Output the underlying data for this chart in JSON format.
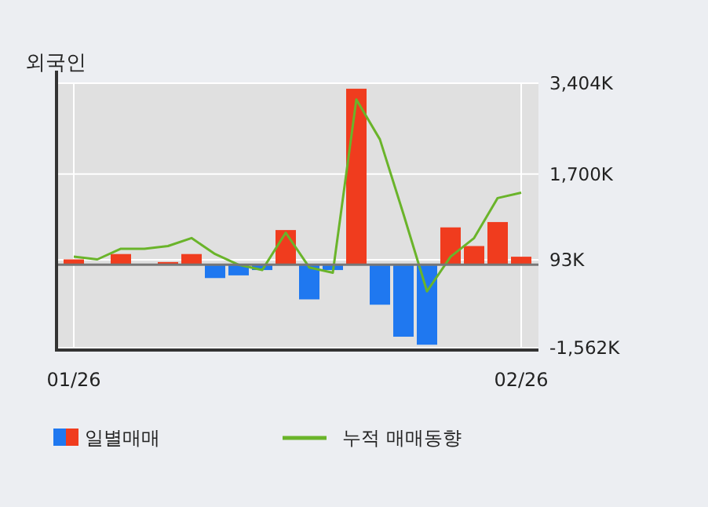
{
  "chart_data": {
    "type": "bar",
    "title": "외국인",
    "categories": [
      "01/26",
      null,
      null,
      null,
      null,
      null,
      null,
      null,
      null,
      null,
      null,
      null,
      null,
      null,
      null,
      null,
      null,
      null,
      null,
      "02/26"
    ],
    "series": [
      {
        "name": "일별매매",
        "colors": [
          "#f03c1e",
          "#f03c1e",
          "#f03c1e",
          "#f03c1e",
          "#f03c1e",
          "#f03c1e",
          "#1f78f0",
          "#1f78f0",
          "#1f78f0",
          "#f03c1e",
          "#1f78f0",
          "#1f78f0",
          "#f03c1e",
          "#1f78f0",
          "#1f78f0",
          "#1f78f0",
          "#f03c1e",
          "#f03c1e",
          "#f03c1e",
          "#f03c1e"
        ],
        "values": [
          100,
          null,
          200,
          null,
          50,
          200,
          -250,
          -200,
          -100,
          650,
          -650,
          -100,
          3300,
          -750,
          -1350,
          -1500,
          700,
          350,
          800,
          150
        ]
      },
      {
        "name": "누적 매매동향",
        "type": "line",
        "color": "#6ab42a",
        "values": [
          150,
          100,
          300,
          300,
          350,
          500,
          200,
          0,
          -100,
          600,
          -50,
          -150,
          3100,
          2350,
          950,
          -500,
          150,
          500,
          1250,
          1350
        ]
      }
    ],
    "ylim": [
      -1600,
      3404
    ],
    "yticks": [
      {
        "value": 3404,
        "label": "3,404K"
      },
      {
        "value": 1700,
        "label": "1,700K"
      },
      {
        "value": 93,
        "label": "93K"
      },
      {
        "value": -1562,
        "label": "-1,562K"
      }
    ],
    "grid": true,
    "legend": "bottom",
    "marker": "none",
    "line_style": "solid"
  }
}
